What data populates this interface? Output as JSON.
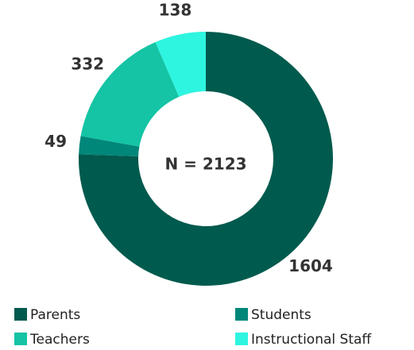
{
  "chart_data": {
    "type": "donut",
    "center_label": "N = 2123",
    "categories": [
      "Parents",
      "Students",
      "Teachers",
      "Instructional Staff"
    ],
    "values": [
      1604,
      49,
      332,
      138
    ],
    "colors": [
      "#005a4e",
      "#00877a",
      "#14c4a4",
      "#2ef5e0"
    ],
    "legend": "bottom"
  }
}
